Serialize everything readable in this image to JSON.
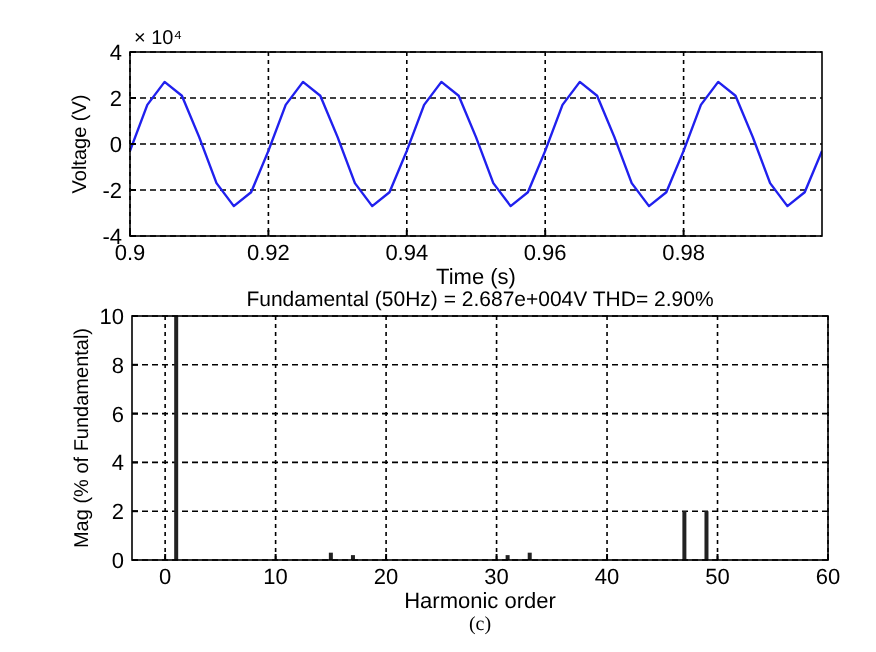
{
  "chart_data": [
    {
      "type": "line",
      "xlabel": "Time (s)",
      "ylabel": "Voltage (V)",
      "annotations": [
        "× 10⁴"
      ],
      "xlim": [
        0.9,
        1.0
      ],
      "xticks": [
        0.9,
        0.92,
        0.94,
        0.96,
        0.98
      ],
      "ylim": [
        -4,
        4
      ],
      "yticks": [
        -4,
        -2,
        0,
        2,
        4
      ],
      "grid": true,
      "line_style": "solid",
      "marker": "none",
      "x": [
        0.9,
        0.9025,
        0.905,
        0.9075,
        0.91,
        0.9125,
        0.915,
        0.9175,
        0.92,
        0.9225,
        0.925,
        0.9275,
        0.93,
        0.9325,
        0.935,
        0.9375,
        0.94,
        0.9425,
        0.945,
        0.9475,
        0.95,
        0.9525,
        0.955,
        0.9575,
        0.96,
        0.9625,
        0.965,
        0.9675,
        0.97,
        0.9725,
        0.975,
        0.9775,
        0.98,
        0.9825,
        0.985,
        0.9875,
        0.99,
        0.9925,
        0.995,
        0.9975,
        1.0
      ],
      "series": [
        {
          "color": "#2020ee",
          "values": [
            -0.3,
            1.7,
            2.7,
            2.1,
            0.3,
            -1.7,
            -2.7,
            -2.1,
            -0.3,
            1.7,
            2.7,
            2.1,
            0.3,
            -1.7,
            -2.7,
            -2.1,
            -0.3,
            1.7,
            2.7,
            2.1,
            0.3,
            -1.7,
            -2.7,
            -2.1,
            -0.3,
            1.7,
            2.7,
            2.1,
            0.3,
            -1.7,
            -2.7,
            -2.1,
            -0.3,
            1.7,
            2.7,
            2.1,
            0.3,
            -1.7,
            -2.7,
            -2.1,
            -0.3
          ]
        }
      ]
    },
    {
      "type": "bar",
      "title": "Fundamental (50Hz) = 2.687e+004V THD= 2.90%",
      "xlabel": "Harmonic order",
      "ylabel": "Mag (% of Fundamental)",
      "annotations": [
        "(c)"
      ],
      "xlim": [
        -3,
        60
      ],
      "xticks": [
        0,
        10,
        20,
        30,
        40,
        50,
        60
      ],
      "ylim": [
        0,
        10
      ],
      "yticks": [
        0,
        2,
        4,
        6,
        8,
        10
      ],
      "grid": true,
      "x": [
        15,
        17,
        31,
        33,
        47,
        49
      ],
      "series": [
        {
          "color": "#222222",
          "values": [
            0.3,
            0.2,
            0.2,
            0.3,
            2.0,
            2.0
          ]
        }
      ],
      "ref_lines": [
        {
          "axis": "x",
          "value": 1,
          "color": "#222222"
        }
      ]
    }
  ]
}
